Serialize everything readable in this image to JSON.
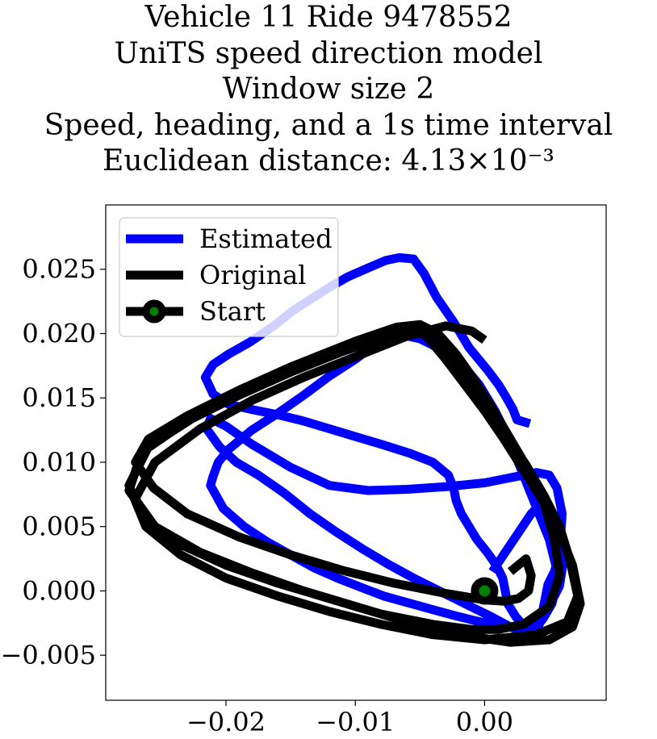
{
  "title_lines": [
    "Vehicle 11 Ride 9478552",
    "UniTS speed direction model",
    "Window size 2",
    "Speed, heading, and a 1s time interval",
    "Euclidean distance: 4.13×10⁻³"
  ],
  "chart_data": {
    "type": "line",
    "title": "Vehicle 11 Ride 9478552 / UniTS speed direction model / Window size 2 / Speed, heading, and a 1s time interval / Euclidean distance: 4.13×10⁻³",
    "xlabel": "",
    "ylabel": "",
    "xlim": [
      -0.0293,
      0.0094
    ],
    "ylim": [
      -0.0085,
      0.03
    ],
    "xticks": [
      -0.02,
      -0.01,
      0.0
    ],
    "xtick_labels": [
      "−0.02",
      "−0.01",
      "0.00"
    ],
    "yticks": [
      -0.005,
      0.0,
      0.005,
      0.01,
      0.015,
      0.02,
      0.025
    ],
    "ytick_labels": [
      "−0.005",
      "0.000",
      "0.005",
      "0.010",
      "0.015",
      "0.020",
      "0.025"
    ],
    "grid": false,
    "legend_position": "upper-left",
    "series": [
      {
        "name": "Estimated",
        "color": "#0000ff",
        "x": [
          0.0035,
          0.0025,
          0.0022,
          0.0017,
          0.0011,
          0.0002,
          -0.0012,
          -0.0024,
          -0.0037,
          -0.0047,
          -0.0055,
          -0.0066,
          -0.0076,
          -0.009,
          -0.0106,
          -0.012,
          -0.0134,
          -0.0148,
          -0.0163,
          -0.0182,
          -0.0198,
          -0.021,
          -0.0216,
          -0.021,
          -0.0198,
          -0.018,
          -0.016,
          -0.014,
          -0.012,
          -0.01,
          -0.008,
          -0.0058,
          -0.004,
          -0.0028,
          -0.0024,
          -0.0022,
          -0.0018,
          -0.0012,
          -0.0006,
          0.0002,
          0.0009,
          0.0014,
          0.0016,
          0.0018,
          0.0024,
          0.0031,
          0.0038,
          0.0041,
          0.0043,
          0.0045,
          0.0047,
          0.0049,
          0.0054,
          0.0058,
          0.006,
          0.0056,
          0.005,
          0.004,
          0.002,
          0.0,
          -0.003,
          -0.006,
          -0.009,
          -0.012,
          -0.015,
          -0.018,
          -0.02,
          -0.0212,
          -0.0215,
          -0.0205,
          -0.0192,
          -0.0175,
          -0.0155,
          -0.0135,
          -0.0115,
          -0.0095,
          -0.0075,
          -0.0055,
          -0.0035,
          -0.0015,
          0.0005,
          0.002,
          0.003,
          0.0038,
          0.0045,
          0.0052,
          0.0056,
          0.0055,
          0.005,
          0.0042,
          0.0034,
          0.0026,
          0.0018,
          0.0008,
          -0.0004,
          -0.0018,
          -0.0034,
          -0.005,
          -0.0064,
          -0.0076,
          -0.0086,
          -0.0092,
          -0.01,
          -0.012,
          -0.014,
          -0.016,
          -0.018,
          -0.0198,
          -0.0206,
          -0.021,
          -0.0212,
          -0.0202,
          -0.0186,
          -0.0168,
          -0.015,
          -0.0132,
          -0.0114,
          -0.0096,
          -0.0078,
          -0.006,
          -0.0042,
          -0.0024,
          -0.0008,
          0.0006,
          0.002,
          0.0032,
          0.0042,
          0.005,
          0.0058,
          0.0062,
          0.0056,
          0.0046,
          0.0036,
          0.0026,
          0.0016,
          0.0006
        ],
        "y": [
          0.013,
          0.0133,
          0.0141,
          0.015,
          0.016,
          0.0172,
          0.0189,
          0.0209,
          0.0228,
          0.0247,
          0.0258,
          0.0259,
          0.0257,
          0.0251,
          0.0244,
          0.0236,
          0.0227,
          0.0218,
          0.0206,
          0.0193,
          0.0184,
          0.0176,
          0.0166,
          0.0153,
          0.0145,
          0.0141,
          0.0137,
          0.0132,
          0.0126,
          0.012,
          0.0114,
          0.0107,
          0.01,
          0.009,
          0.008,
          0.007,
          0.006,
          0.005,
          0.004,
          0.003,
          0.002,
          0.001,
          0.0,
          -0.001,
          -0.002,
          -0.0028,
          -0.0032,
          -0.003,
          -0.0024,
          -0.0015,
          -0.0005,
          0.0005,
          0.0015,
          0.003,
          0.006,
          0.008,
          0.009,
          0.0092,
          0.0088,
          0.0084,
          0.0081,
          0.0079,
          0.0078,
          0.0082,
          0.0096,
          0.0114,
          0.0128,
          0.0134,
          0.0126,
          0.0112,
          0.01,
          0.009,
          0.0076,
          0.006,
          0.0046,
          0.0033,
          0.0021,
          0.001,
          0.0,
          -0.001,
          -0.002,
          -0.0028,
          -0.0032,
          -0.003,
          -0.0022,
          -0.001,
          0.0005,
          0.002,
          0.004,
          0.006,
          0.008,
          0.01,
          0.012,
          0.014,
          0.016,
          0.0177,
          0.0188,
          0.0196,
          0.0199,
          0.0195,
          0.019,
          0.0186,
          0.018,
          0.0167,
          0.0152,
          0.0138,
          0.0125,
          0.011,
          0.01,
          0.0089,
          0.0082,
          0.0064,
          0.005,
          0.0038,
          0.0028,
          0.0018,
          0.001,
          0.0003,
          -0.0004,
          -0.0009,
          -0.0014,
          -0.0019,
          -0.0023,
          -0.0026,
          -0.0028,
          -0.0028,
          -0.0022,
          -0.0012,
          0.0004,
          0.003,
          0.0055,
          0.007,
          0.006,
          0.0045,
          0.003,
          0.0015
        ]
      },
      {
        "name": "Original",
        "color": "#000000",
        "x": [
          0.002,
          0.0032,
          0.0036,
          0.0034,
          0.0026,
          0.0014,
          0.0,
          -0.003,
          -0.007,
          -0.011,
          -0.015,
          -0.019,
          -0.023,
          -0.0256,
          -0.027,
          -0.026,
          -0.023,
          -0.019,
          -0.015,
          -0.011,
          -0.0075,
          -0.0055,
          -0.0045,
          -0.003,
          -0.0015,
          0.0,
          0.0015,
          0.003,
          0.0045,
          0.0058,
          0.0068,
          0.0074,
          0.0068,
          0.005,
          0.002,
          -0.002,
          -0.006,
          -0.01,
          -0.014,
          -0.018,
          -0.022,
          -0.0255,
          -0.0275,
          -0.0265,
          -0.023,
          -0.019,
          -0.015,
          -0.011,
          -0.0075,
          -0.0052,
          -0.004,
          -0.0028,
          -0.0014,
          0.0001,
          0.0016,
          0.0032,
          0.0046,
          0.0058,
          0.0066,
          0.0072,
          0.0064,
          0.004,
          0.0,
          -0.004,
          -0.008,
          -0.012,
          -0.016,
          -0.02,
          -0.0235,
          -0.0262,
          -0.0275,
          -0.026,
          -0.022,
          -0.018,
          -0.014,
          -0.01,
          -0.0068,
          -0.005,
          -0.0036,
          -0.0022,
          -0.0008,
          0.0006,
          0.002,
          0.0034,
          0.0046,
          0.0054,
          0.0058,
          0.005,
          0.003,
          0.001,
          -0.001,
          -0.004,
          -0.008,
          -0.012,
          -0.016,
          -0.02,
          -0.0235,
          -0.026,
          -0.027,
          -0.0255,
          -0.022,
          -0.018,
          -0.014,
          -0.01,
          -0.006,
          -0.003,
          -0.001,
          0.0
        ],
        "y": [
          0.0015,
          0.0025,
          0.0012,
          0.0,
          -0.0006,
          -0.0008,
          -0.0007,
          -0.0002,
          0.0006,
          0.0016,
          0.0028,
          0.0042,
          0.006,
          0.008,
          0.01,
          0.0118,
          0.0136,
          0.0156,
          0.0174,
          0.019,
          0.02,
          0.0203,
          0.0198,
          0.018,
          0.016,
          0.014,
          0.0118,
          0.0094,
          0.007,
          0.0046,
          0.002,
          -0.001,
          -0.0028,
          -0.0038,
          -0.004,
          -0.0034,
          -0.0024,
          -0.0012,
          0.0,
          0.0014,
          0.003,
          0.005,
          0.0078,
          0.0108,
          0.0132,
          0.0152,
          0.017,
          0.0186,
          0.0198,
          0.0205,
          0.02,
          0.0184,
          0.0164,
          0.0144,
          0.0122,
          0.0098,
          0.0074,
          0.005,
          0.0024,
          -0.0004,
          -0.0024,
          -0.0034,
          -0.0038,
          -0.0034,
          -0.0026,
          -0.0016,
          -0.0004,
          0.001,
          0.0028,
          0.005,
          0.0082,
          0.0112,
          0.0138,
          0.016,
          0.0178,
          0.0194,
          0.0205,
          0.0207,
          0.02,
          0.0184,
          0.0164,
          0.0142,
          0.0118,
          0.0094,
          0.0068,
          0.004,
          0.0012,
          -0.0012,
          -0.0026,
          -0.003,
          -0.003,
          -0.0026,
          -0.0018,
          -0.0006,
          0.0006,
          0.002,
          0.0036,
          0.0052,
          0.0072,
          0.01,
          0.0126,
          0.0148,
          0.0166,
          0.0182,
          0.0198,
          0.0206,
          0.0202,
          0.0195
        ]
      }
    ],
    "start_marker": {
      "name": "Start",
      "x": 0.0,
      "y": 0.0,
      "color": "#008000",
      "edge_color": "#000000"
    }
  }
}
